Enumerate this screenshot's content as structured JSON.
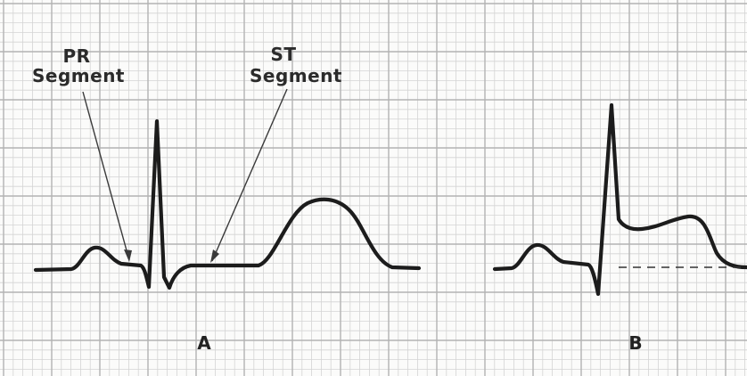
{
  "panels": [
    {
      "id": "A",
      "letter": "A"
    },
    {
      "id": "B",
      "letter": "B"
    }
  ],
  "annotations": {
    "pr_segment": {
      "line1": "PR",
      "line2": "Segment"
    },
    "st_segment": {
      "line1": "ST",
      "line2": "Segment"
    }
  },
  "colors": {
    "grid_minor": "#d4d4d4",
    "grid_major": "#b3b3b3",
    "trace": "#1c1c1c",
    "background": "#fbfbfa"
  }
}
